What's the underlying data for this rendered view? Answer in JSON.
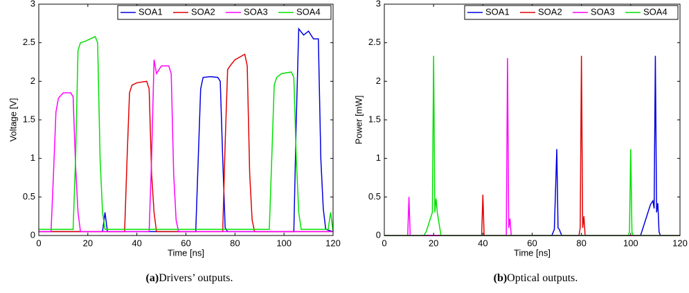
{
  "chart_data": [
    {
      "type": "line",
      "caption_label": "(a)",
      "caption": "Drivers’ outputs.",
      "xlabel": "Time [ns]",
      "ylabel": "Voltage [V]",
      "xlim": [
        0,
        120
      ],
      "xticks": [
        0,
        20,
        40,
        60,
        80,
        100,
        120
      ],
      "ylim": [
        0,
        3
      ],
      "yticks": [
        0,
        0.5,
        1,
        1.5,
        2,
        2.5,
        3
      ],
      "legend": "upper right",
      "series": [
        {
          "name": "SOA1",
          "color": "#0000e0",
          "x": [
            0,
            26,
            27,
            28,
            29,
            64,
            66,
            67,
            70,
            73,
            74,
            75,
            76,
            77,
            104,
            105,
            106,
            108,
            110,
            112,
            114,
            115,
            116,
            117,
            120
          ],
          "values": [
            0.05,
            0.05,
            0.3,
            0.05,
            0.05,
            0.05,
            1.9,
            2.05,
            2.06,
            2.05,
            2.0,
            1.0,
            0.1,
            0.05,
            0.05,
            1.5,
            2.68,
            2.6,
            2.65,
            2.55,
            2.55,
            1.0,
            0.35,
            0.08,
            0.05
          ]
        },
        {
          "name": "SOA2",
          "color": "#e00000",
          "x": [
            0,
            35,
            36,
            37,
            38,
            40,
            44,
            45,
            46,
            47,
            48,
            75,
            76,
            77,
            78,
            80,
            84,
            85,
            86,
            87,
            88,
            120
          ],
          "values": [
            0.05,
            0.05,
            1.0,
            1.85,
            1.95,
            1.98,
            2.0,
            1.9,
            0.8,
            0.3,
            0.05,
            0.05,
            1.2,
            2.15,
            2.2,
            2.28,
            2.35,
            2.2,
            0.8,
            0.2,
            0.05,
            0.05
          ]
        },
        {
          "name": "SOA3",
          "color": "#ff00ff",
          "x": [
            0,
            5,
            6,
            7,
            8,
            10,
            13,
            14,
            15,
            16,
            17,
            45,
            46,
            47,
            48,
            50,
            53,
            54,
            55,
            56,
            57,
            120
          ],
          "values": [
            0.05,
            0.05,
            0.8,
            1.6,
            1.78,
            1.85,
            1.85,
            1.8,
            0.9,
            0.3,
            0.05,
            0.05,
            1.0,
            2.28,
            2.1,
            2.2,
            2.2,
            2.1,
            0.8,
            0.2,
            0.05,
            0.05
          ]
        },
        {
          "name": "SOA4",
          "color": "#00e000",
          "x": [
            0,
            14,
            15,
            16,
            17,
            19,
            23,
            24,
            25,
            26,
            27,
            94,
            95,
            96,
            97,
            99,
            103,
            104,
            105,
            106,
            107,
            118,
            119,
            120
          ],
          "values": [
            0.08,
            0.08,
            1.0,
            2.4,
            2.5,
            2.52,
            2.58,
            2.5,
            1.0,
            0.3,
            0.08,
            0.08,
            1.0,
            1.95,
            2.05,
            2.1,
            2.12,
            2.05,
            1.0,
            0.3,
            0.08,
            0.08,
            0.3,
            0.05
          ]
        }
      ]
    },
    {
      "type": "line",
      "caption_label": "(b)",
      "caption": "Optical outputs.",
      "xlabel": "Time [ns]",
      "ylabel": "Power [mW]",
      "xlim": [
        0,
        120
      ],
      "xticks": [
        0,
        20,
        40,
        60,
        80,
        100,
        120
      ],
      "ylim": [
        0,
        3
      ],
      "yticks": [
        0,
        0.5,
        1,
        1.5,
        2,
        2.5,
        3
      ],
      "legend": "upper right",
      "series": [
        {
          "name": "SOA1",
          "color": "#0000e0",
          "x": [
            0,
            68,
            69,
            70,
            70.5,
            71,
            72,
            104,
            106,
            108,
            109,
            109.5,
            110,
            110.5,
            111,
            111.5,
            112,
            120
          ],
          "values": [
            0,
            0,
            0.08,
            1.12,
            0.1,
            0.08,
            0,
            0,
            0.2,
            0.4,
            0.45,
            0.35,
            2.33,
            0.3,
            0.42,
            0.05,
            0,
            0
          ]
        },
        {
          "name": "SOA2",
          "color": "#e00000",
          "x": [
            0,
            39.5,
            40,
            40.5,
            79,
            79.5,
            80,
            80.5,
            81,
            81.5,
            120
          ],
          "values": [
            0,
            0,
            0.53,
            0,
            0,
            0.1,
            2.33,
            0.1,
            0.25,
            0,
            0
          ]
        },
        {
          "name": "SOA3",
          "color": "#ff00ff",
          "x": [
            0,
            9.5,
            10,
            10.5,
            49.5,
            50,
            50.5,
            51,
            51.5,
            120
          ],
          "values": [
            0,
            0,
            0.5,
            0,
            0,
            2.3,
            0.1,
            0.22,
            0,
            0
          ]
        },
        {
          "name": "SOA4",
          "color": "#00e000",
          "x": [
            0,
            16,
            17,
            19,
            19.5,
            20,
            20.5,
            21,
            21.5,
            22,
            23,
            99,
            99.5,
            100,
            100.5,
            101,
            120
          ],
          "values": [
            0,
            0,
            0.05,
            0.25,
            0.3,
            2.33,
            0.3,
            0.48,
            0.3,
            0.2,
            0,
            0,
            0.05,
            1.12,
            0.05,
            0,
            0
          ]
        }
      ]
    }
  ]
}
